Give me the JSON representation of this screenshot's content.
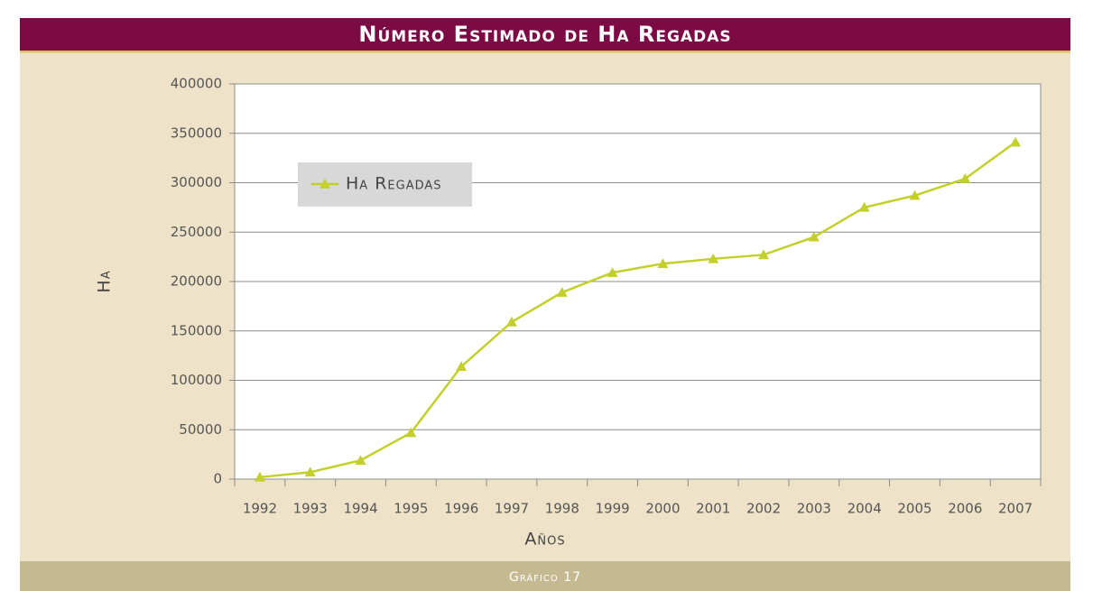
{
  "chart_data": {
    "type": "line",
    "title": "Número Estimado de Ha Regadas",
    "caption": "Gráfico 17",
    "x_label": "Años",
    "y_label": "Ha",
    "categories": [
      "1992",
      "1993",
      "1994",
      "1995",
      "1996",
      "1997",
      "1998",
      "1999",
      "2000",
      "2001",
      "2002",
      "2003",
      "2004",
      "2005",
      "2006",
      "2007"
    ],
    "series": [
      {
        "name": "Ha Regadas",
        "color": "#c3cf2a",
        "values": [
          2000,
          7000,
          19000,
          47000,
          114000,
          159000,
          189000,
          209000,
          218000,
          223000,
          227000,
          245000,
          275000,
          287000,
          304000,
          341000
        ]
      }
    ],
    "ylim": [
      0,
      400000
    ],
    "yticks": [
      0,
      50000,
      100000,
      150000,
      200000,
      250000,
      300000,
      350000,
      400000
    ],
    "grid": true,
    "legend": "upper left"
  }
}
